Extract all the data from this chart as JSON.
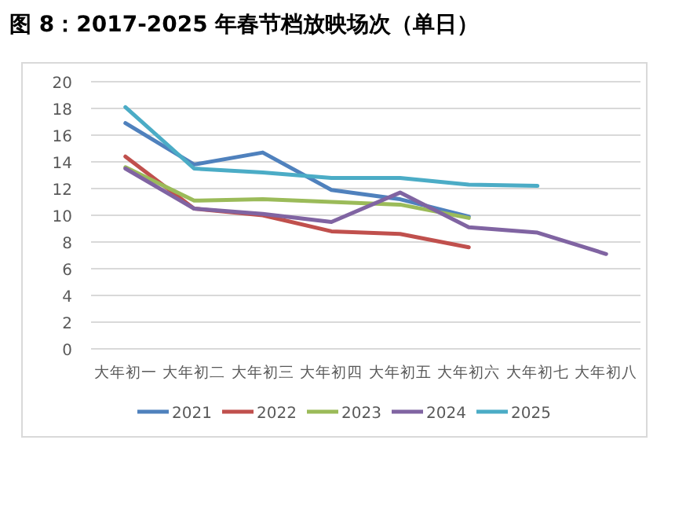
{
  "chart_data": {
    "type": "line",
    "title": "图 8：2017-2025 年春节档放映场次（单日）",
    "categories": [
      "大年初一",
      "大年初二",
      "大年初三",
      "大年初四",
      "大年初五",
      "大年初六",
      "大年初七",
      "大年初八"
    ],
    "series": [
      {
        "name": "2021",
        "color": "#4f81bd",
        "values": [
          16.9,
          13.8,
          14.7,
          11.9,
          11.2,
          9.9,
          null,
          null
        ]
      },
      {
        "name": "2022",
        "color": "#c0504d",
        "values": [
          14.4,
          10.5,
          10.0,
          8.8,
          8.6,
          7.6,
          null,
          null
        ]
      },
      {
        "name": "2023",
        "color": "#9bbb59",
        "values": [
          13.6,
          11.1,
          11.2,
          11.0,
          10.8,
          9.8,
          null,
          null
        ]
      },
      {
        "name": "2024",
        "color": "#8064a2",
        "values": [
          13.5,
          10.5,
          10.1,
          9.5,
          11.7,
          9.1,
          8.7,
          7.1
        ]
      },
      {
        "name": "2025",
        "color": "#4bacc6",
        "values": [
          18.1,
          13.5,
          13.2,
          12.8,
          12.8,
          12.3,
          12.2,
          null
        ]
      }
    ],
    "ylim": [
      0,
      20
    ],
    "yticks": [
      0,
      2,
      4,
      6,
      8,
      10,
      12,
      14,
      16,
      18,
      20
    ],
    "grid": "y",
    "legend": "bottom",
    "marker": "none",
    "line_style": "solid"
  }
}
